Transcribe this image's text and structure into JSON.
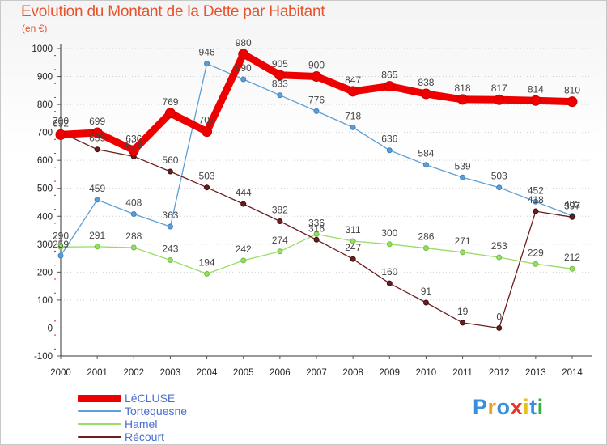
{
  "title": "Evolution du Montant de la Dette par Habitant",
  "subtitle": "(en €)",
  "brand": {
    "letters": [
      "P",
      "r",
      "o",
      "x",
      "i",
      "t",
      "i"
    ],
    "colors": [
      "#3a8ede",
      "#f0a020",
      "#3a8ede",
      "#e23a2a",
      "#e8c01a",
      "#3a8ede",
      "#3ab03a"
    ]
  },
  "chart_data": {
    "type": "line",
    "title": "Evolution du Montant de la Dette par Habitant",
    "ylabel": "(en €)",
    "xlabel": "",
    "x": [
      "2000",
      "2001",
      "2002",
      "2003",
      "2004",
      "2005",
      "2006",
      "2007",
      "2008",
      "2009",
      "2010",
      "2011",
      "2012",
      "2013",
      "2014"
    ],
    "ylim": [
      -100,
      1000
    ],
    "yticks": [
      "-100",
      "0",
      "100",
      "200",
      "300",
      "400",
      "500",
      "600",
      "700",
      "800",
      "900",
      "1000"
    ],
    "grid": "horizontal, dotted",
    "legend_position": "bottom-left",
    "series": [
      {
        "name": "LéCLUSE",
        "color": "#ee0000",
        "values": [
          692,
          699,
          636,
          769,
          703,
          980,
          905,
          900,
          847,
          865,
          838,
          818,
          817,
          814,
          810
        ],
        "labels": [
          "692",
          "699",
          "636",
          "769",
          "703",
          "980",
          "905",
          "900",
          "847",
          "865",
          "838",
          "818",
          "817",
          "814",
          "810"
        ]
      },
      {
        "name": "Tortequesne",
        "color": "#5c9fd6",
        "values": [
          259,
          459,
          408,
          363,
          946,
          890,
          833,
          776,
          718,
          636,
          584,
          539,
          503,
          452,
          402
        ],
        "labels": [
          "259",
          "459",
          "408",
          "363",
          "946",
          "890",
          "833",
          "776",
          "718",
          "636",
          "584",
          "539",
          "503",
          "452",
          "402"
        ]
      },
      {
        "name": "Hamel",
        "color": "#99dd66",
        "values": [
          290,
          291,
          288,
          243,
          194,
          242,
          274,
          336,
          311,
          300,
          286,
          271,
          253,
          229,
          212
        ],
        "labels": [
          "290",
          "291",
          "288",
          "243",
          "194",
          "242",
          "274",
          "336",
          "311",
          "300",
          "286",
          "271",
          "253",
          "229",
          "212"
        ]
      },
      {
        "name": "Récourt",
        "color": "#6b1e1e",
        "values": [
          700,
          639,
          614,
          560,
          503,
          444,
          382,
          316,
          247,
          160,
          91,
          19,
          0,
          418,
          397
        ],
        "labels": [
          "700",
          "639",
          "614",
          "560",
          "503",
          "444",
          "382",
          "316",
          "247",
          "160",
          "91",
          "19",
          "0",
          "418",
          "397"
        ]
      }
    ]
  }
}
